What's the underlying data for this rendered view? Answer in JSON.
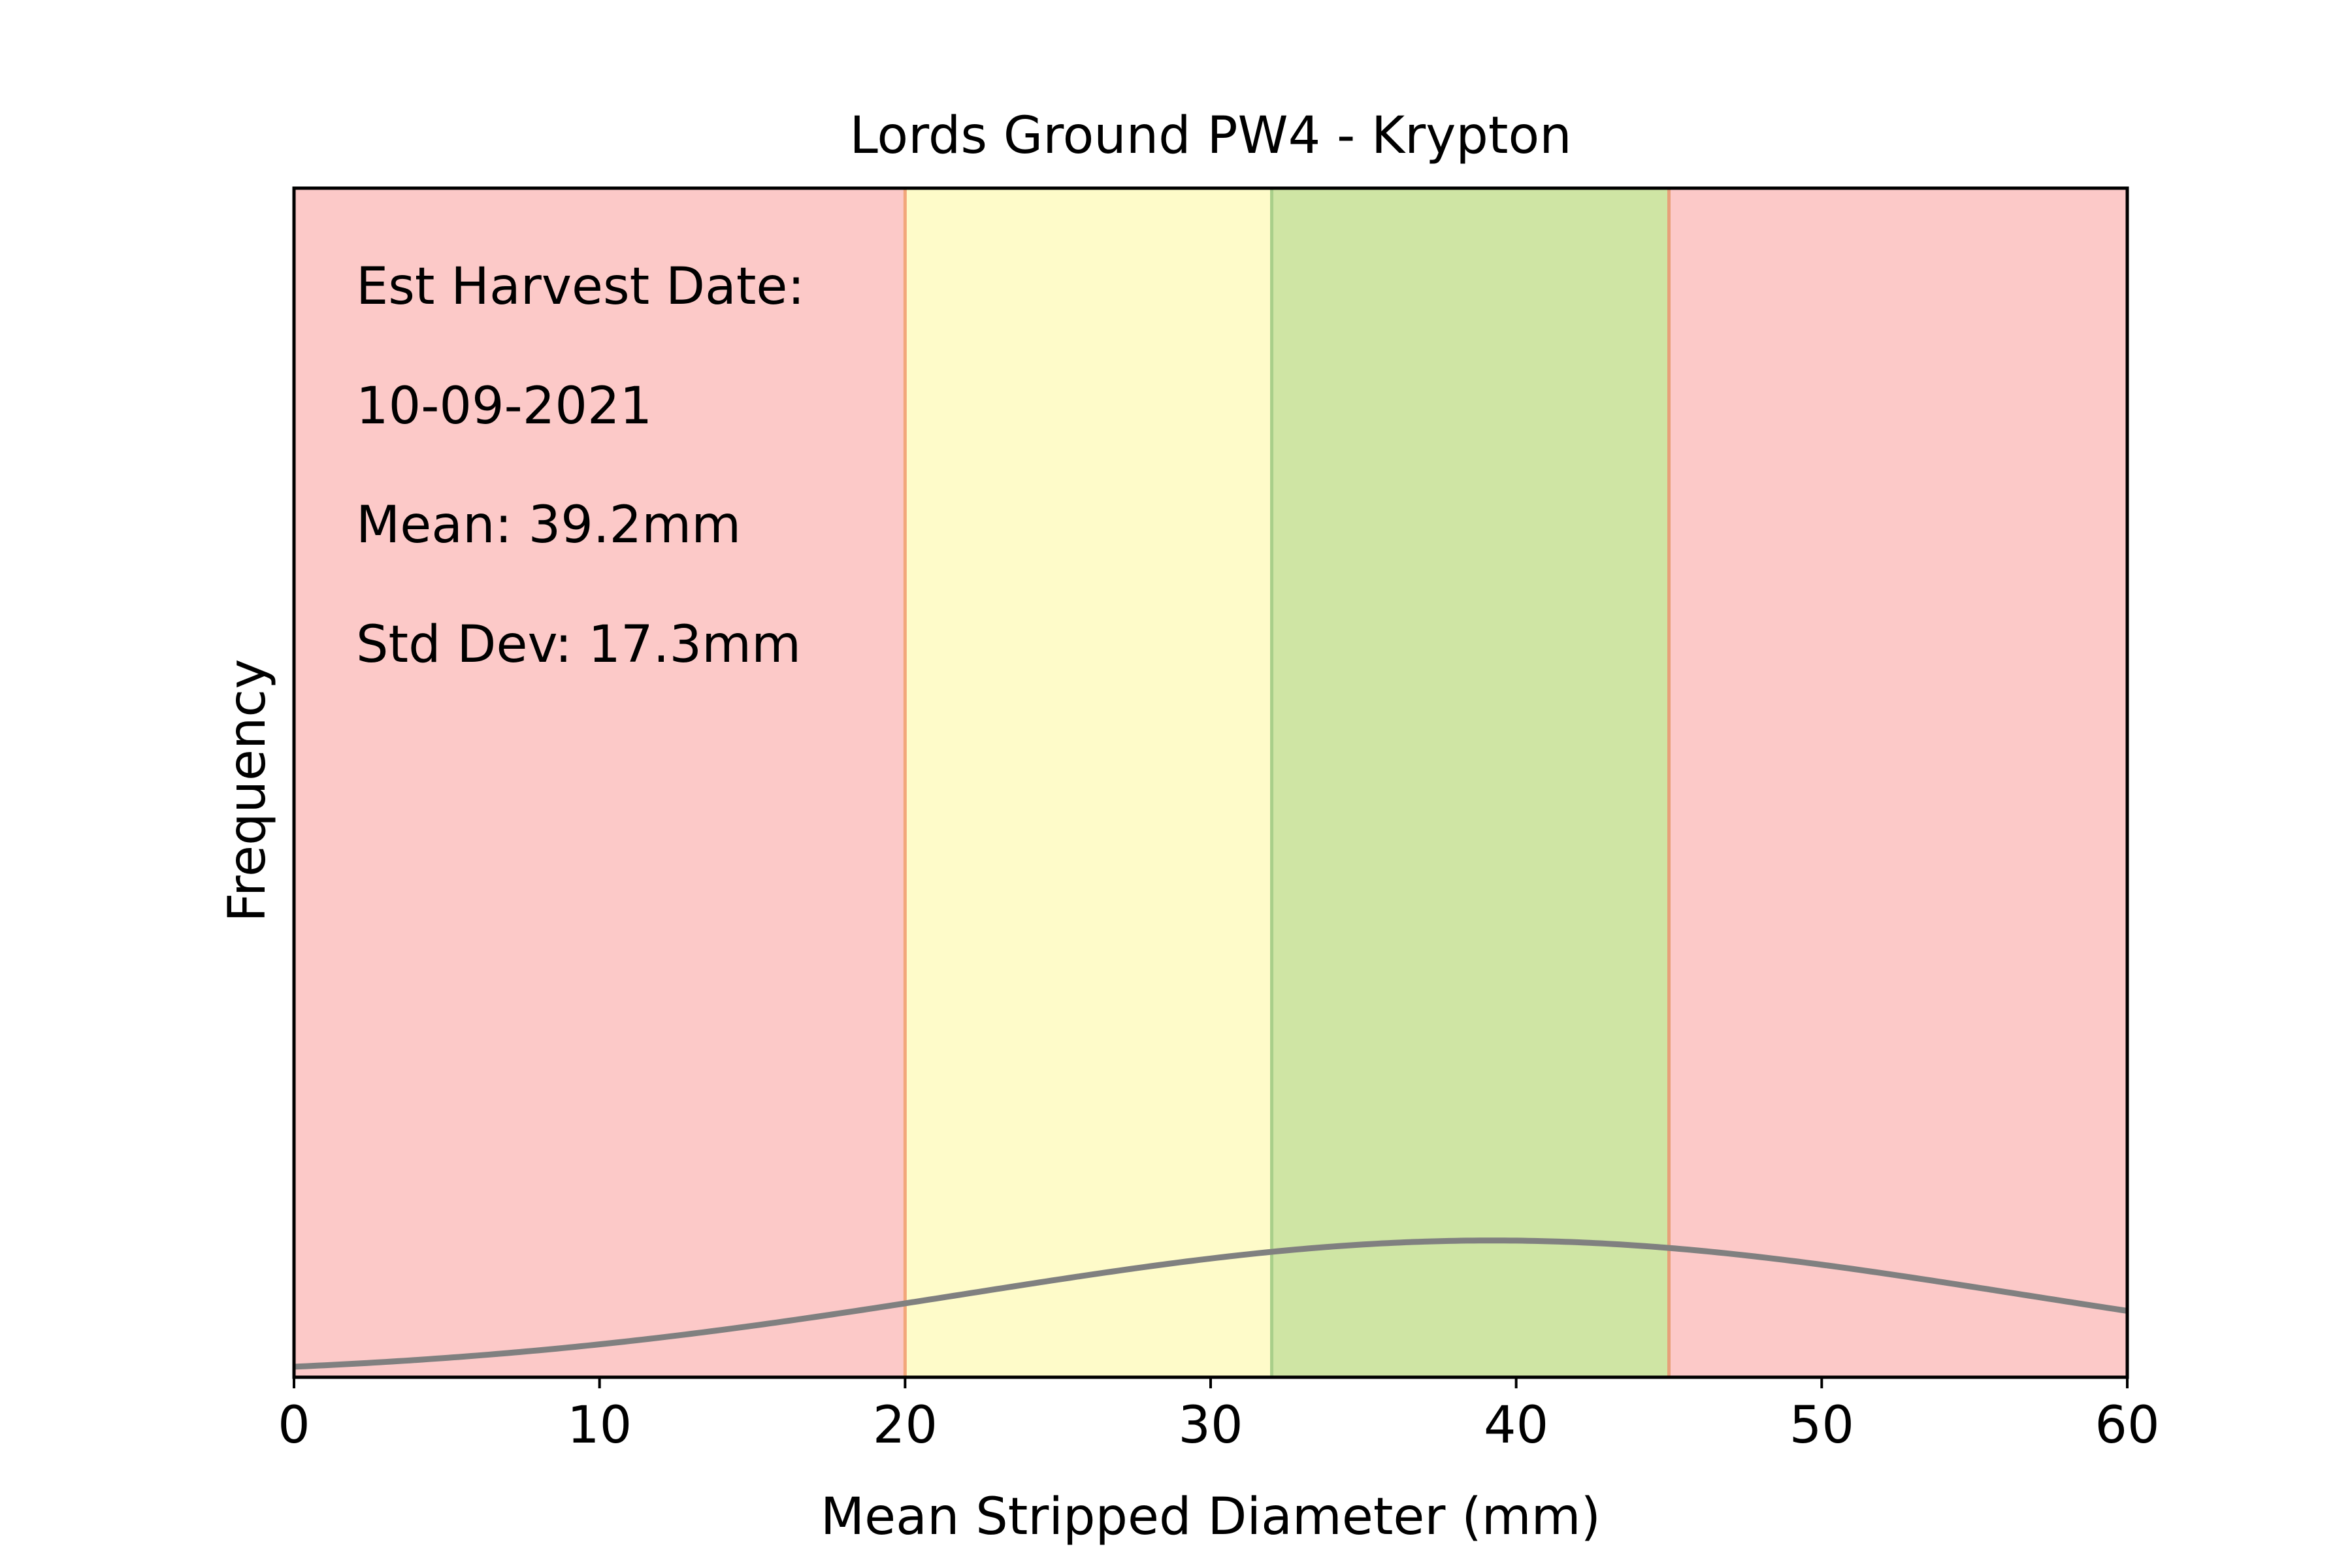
{
  "chart_data": {
    "type": "line",
    "title": "Lords Ground PW4 - Krypton",
    "xlabel": "Mean Stripped Diameter (mm)",
    "ylabel": "Frequency",
    "xlim": [
      0,
      60
    ],
    "xticks": [
      "0",
      "10",
      "20",
      "30",
      "40",
      "50",
      "60"
    ],
    "ylim": [
      0,
      1
    ],
    "yticks_visible": false,
    "grid": false,
    "bands": [
      {
        "name": "low",
        "from": 0,
        "to": 20,
        "color": "#fcc9c8"
      },
      {
        "name": "developing",
        "from": 20,
        "to": 32,
        "color": "#fefbc9"
      },
      {
        "name": "target",
        "from": 32,
        "to": 45,
        "color": "#cfe5a4"
      },
      {
        "name": "high",
        "from": 45,
        "to": 60,
        "color": "#fcc9c8"
      }
    ],
    "band_edges": [
      {
        "x": 20,
        "color": "#f2a77a"
      },
      {
        "x": 32,
        "color": "#a9cf8a"
      },
      {
        "x": 45,
        "color": "#e8a07a"
      }
    ],
    "series": [
      {
        "curve": "normal_pdf",
        "mean": 39.2,
        "std": 17.3,
        "peak_fraction_of_ylim": 0.115,
        "color": "#808080"
      }
    ],
    "annotations": [
      "Est Harvest Date:",
      "10-09-2021",
      "Mean: 39.2mm",
      "Std Dev: 17.3mm"
    ]
  }
}
